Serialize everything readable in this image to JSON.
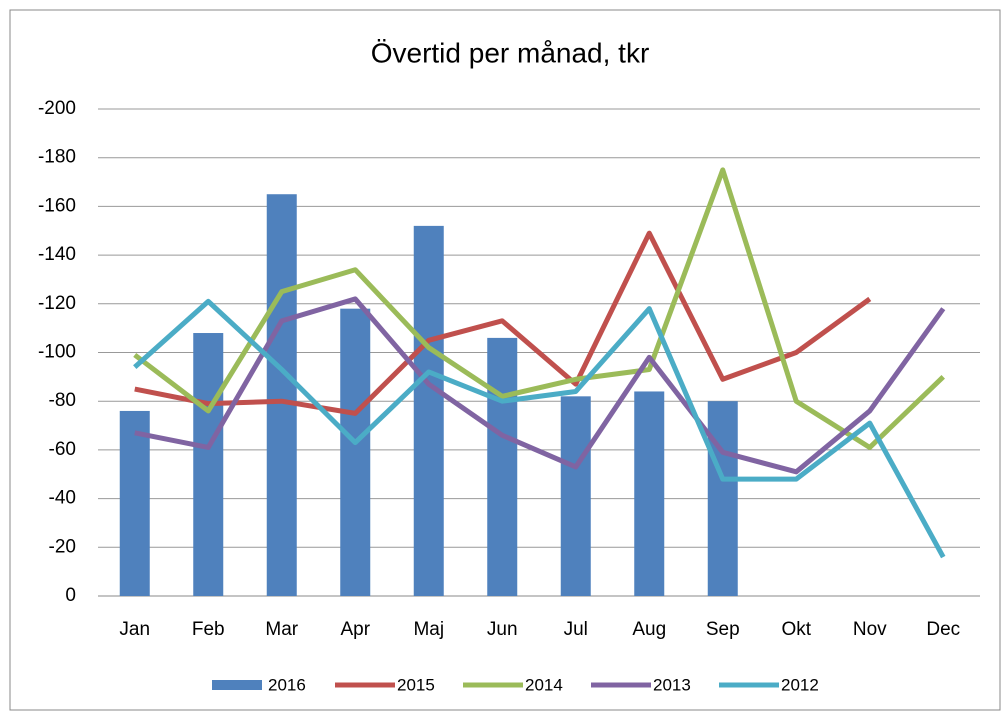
{
  "chart_data": {
    "type": "bar",
    "title": "Övertid per månad, tkr",
    "categories": [
      "Jan",
      "Feb",
      "Mar",
      "Apr",
      "Maj",
      "Jun",
      "Jul",
      "Aug",
      "Sep",
      "Okt",
      "Nov",
      "Dec"
    ],
    "ylim": [
      0,
      -200
    ],
    "yticks": [
      0,
      -20,
      -40,
      -60,
      -80,
      -100,
      -120,
      -140,
      -160,
      -180,
      -200
    ],
    "grid": true,
    "series": [
      {
        "name": "2016",
        "type": "bar",
        "color": "#4f81bd",
        "values": [
          -76,
          -108,
          -165,
          -118,
          -152,
          -106,
          -82,
          -84,
          -80,
          null,
          null,
          null
        ]
      },
      {
        "name": "2015",
        "type": "line",
        "color": "#c0504d",
        "values": [
          -85,
          -79,
          -80,
          -75,
          -105,
          -113,
          -87,
          -149,
          -89,
          -100,
          -122,
          null
        ]
      },
      {
        "name": "2014",
        "type": "line",
        "color": "#9bbb59",
        "values": [
          -99,
          -76,
          -125,
          -134,
          -102,
          -82,
          -89,
          -93,
          -175,
          -80,
          -61,
          -90
        ]
      },
      {
        "name": "2013",
        "type": "line",
        "color": "#8064a2",
        "values": [
          -67,
          -61,
          -113,
          -122,
          -87,
          -66,
          -53,
          -98,
          -59,
          -51,
          -76,
          -118
        ]
      },
      {
        "name": "2012",
        "type": "line",
        "color": "#4bacc6",
        "values": [
          -94,
          -121,
          -93,
          -63,
          -92,
          -80,
          -84,
          -118,
          -48,
          -48,
          -71,
          -16
        ]
      }
    ]
  }
}
